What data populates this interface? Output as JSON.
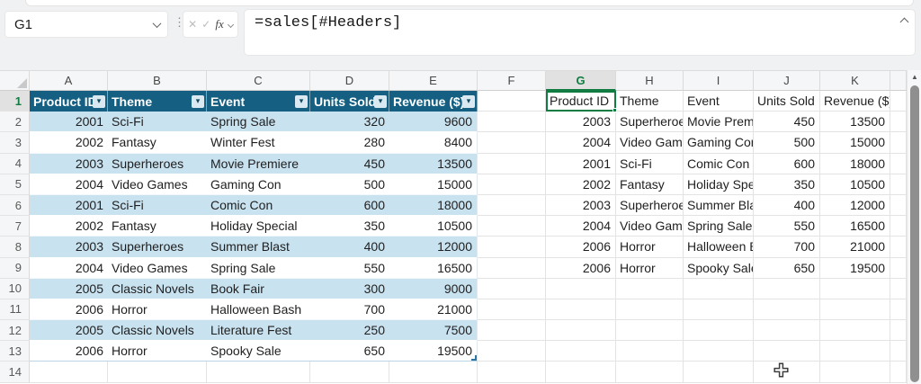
{
  "formula_bar": {
    "name_box_value": "G1",
    "cancel_icon": "✕",
    "enter_icon": "✓",
    "fx_label": "fx",
    "formula": "=sales[#Headers]"
  },
  "sheet": {
    "column_letters": [
      "A",
      "B",
      "C",
      "D",
      "E",
      "F",
      "G",
      "H",
      "I",
      "J",
      "K"
    ],
    "row_count": 14,
    "selected_cell": "G1",
    "selected_column": "G",
    "selected_row": "1",
    "scroll_up_icon": "▲",
    "filter_icon": "▾"
  },
  "sales_table": {
    "headers": [
      "Product ID",
      "Theme",
      "Event",
      "Units Sold",
      "Revenue ($)"
    ],
    "rows": [
      [
        "2001",
        "Sci-Fi",
        "Spring Sale",
        "320",
        "9600"
      ],
      [
        "2002",
        "Fantasy",
        "Winter Fest",
        "280",
        "8400"
      ],
      [
        "2003",
        "Superheroes",
        "Movie Premiere",
        "450",
        "13500"
      ],
      [
        "2004",
        "Video Games",
        "Gaming Con",
        "500",
        "15000"
      ],
      [
        "2001",
        "Sci-Fi",
        "Comic Con",
        "600",
        "18000"
      ],
      [
        "2002",
        "Fantasy",
        "Holiday Special",
        "350",
        "10500"
      ],
      [
        "2003",
        "Superheroes",
        "Summer Blast",
        "400",
        "12000"
      ],
      [
        "2004",
        "Video Games",
        "Spring Sale",
        "550",
        "16500"
      ],
      [
        "2005",
        "Classic Novels",
        "Book Fair",
        "300",
        "9000"
      ],
      [
        "2006",
        "Horror",
        "Halloween Bash",
        "700",
        "21000"
      ],
      [
        "2005",
        "Classic Novels",
        "Literature Fest",
        "250",
        "7500"
      ],
      [
        "2006",
        "Horror",
        "Spooky Sale",
        "650",
        "19500"
      ]
    ]
  },
  "pasted_range": {
    "headers": [
      "Product ID",
      "Theme",
      "Event",
      "Units Sold",
      "Revenue ($)"
    ],
    "rows": [
      [
        "2003",
        "Superheroes",
        "Movie Premiere",
        "450",
        "13500"
      ],
      [
        "2004",
        "Video Games",
        "Gaming Con",
        "500",
        "15000"
      ],
      [
        "2001",
        "Sci-Fi",
        "Comic Con",
        "600",
        "18000"
      ],
      [
        "2002",
        "Fantasy",
        "Holiday Special",
        "350",
        "10500"
      ],
      [
        "2003",
        "Superheroes",
        "Summer Blast",
        "400",
        "12000"
      ],
      [
        "2004",
        "Video Games",
        "Spring Sale",
        "550",
        "16500"
      ],
      [
        "2006",
        "Horror",
        "Halloween Bash",
        "700",
        "21000"
      ],
      [
        "2006",
        "Horror",
        "Spooky Sale",
        "650",
        "19500"
      ]
    ]
  },
  "colors": {
    "table_header_fill": "#156082",
    "table_band_fill": "#C9E2F0",
    "selection_green": "#107C41",
    "chrome_background": "#F0F1F2"
  }
}
